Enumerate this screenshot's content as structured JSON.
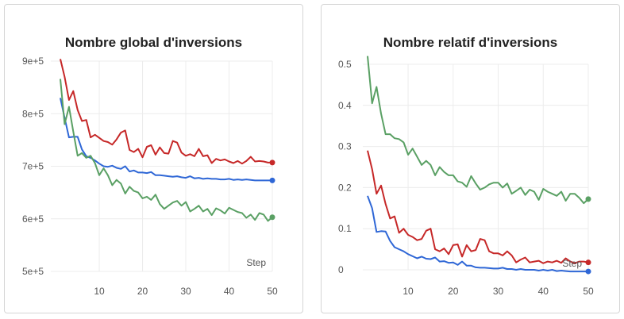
{
  "colors": {
    "red": "#c62828",
    "blue": "#2f67d6",
    "green": "#5aa064",
    "grid": "#ececec"
  },
  "chart_data": [
    {
      "type": "line",
      "title": "Nombre global d'inversions",
      "xlabel": "Step",
      "ylabel": "",
      "grid": true,
      "xlim": [
        1,
        50
      ],
      "ylim": [
        500000,
        900000
      ],
      "x_ticks": [
        10,
        20,
        30,
        40,
        50
      ],
      "x_tick_labels": [
        "10",
        "20",
        "30",
        "40",
        "50"
      ],
      "y_ticks": [
        500000,
        600000,
        700000,
        800000,
        900000
      ],
      "y_tick_labels": [
        "5e+5",
        "6e+5",
        "7e+5",
        "8e+5",
        "9e+5"
      ],
      "series": [
        {
          "color": "red",
          "values": [
            904000,
            870000,
            826000,
            843000,
            807000,
            786000,
            788000,
            755000,
            760000,
            754000,
            748000,
            746000,
            741000,
            751000,
            764000,
            768000,
            731000,
            727000,
            733000,
            717000,
            737000,
            740000,
            722000,
            736000,
            725000,
            724000,
            748000,
            745000,
            726000,
            720000,
            723000,
            719000,
            733000,
            719000,
            721000,
            706000,
            714000,
            711000,
            713000,
            709000,
            706000,
            710000,
            705000,
            710000,
            718000,
            709000,
            710000,
            709000,
            707000,
            707000
          ]
        },
        {
          "color": "blue",
          "values": [
            830000,
            792000,
            755000,
            756000,
            756000,
            732000,
            719000,
            716000,
            711000,
            705000,
            700000,
            699000,
            701000,
            697000,
            695000,
            700000,
            690000,
            692000,
            688000,
            688000,
            687000,
            689000,
            683000,
            683000,
            682000,
            681000,
            680000,
            681000,
            679000,
            678000,
            681000,
            677000,
            678000,
            676000,
            677000,
            676000,
            676000,
            675000,
            675000,
            676000,
            674000,
            675000,
            674000,
            675000,
            674000,
            673000,
            673000,
            673000,
            673000,
            673000
          ]
        },
        {
          "color": "green",
          "values": [
            866000,
            780000,
            813000,
            766000,
            720000,
            725000,
            716000,
            720000,
            706000,
            683000,
            696000,
            683000,
            664000,
            674000,
            667000,
            648000,
            661000,
            653000,
            650000,
            639000,
            642000,
            636000,
            646000,
            628000,
            619000,
            625000,
            631000,
            634000,
            625000,
            632000,
            614000,
            619000,
            625000,
            614000,
            619000,
            607000,
            620000,
            616000,
            610000,
            621000,
            617000,
            613000,
            611000,
            602000,
            608000,
            598000,
            611000,
            608000,
            596000,
            603000
          ]
        }
      ]
    },
    {
      "type": "line",
      "title": "Nombre relatif d'inversions",
      "xlabel": "Step",
      "ylabel": "",
      "grid": true,
      "xlim": [
        1,
        50
      ],
      "ylim": [
        0,
        0.5
      ],
      "x_ticks": [
        10,
        20,
        30,
        40,
        50
      ],
      "x_tick_labels": [
        "10",
        "20",
        "30",
        "40",
        "50"
      ],
      "y_ticks": [
        0,
        0.1,
        0.2,
        0.3,
        0.4,
        0.5
      ],
      "y_tick_labels": [
        "0",
        "0.1",
        "0.2",
        "0.3",
        "0.4",
        "0.5"
      ],
      "series": [
        {
          "color": "red",
          "values": [
            0.29,
            0.245,
            0.185,
            0.205,
            0.16,
            0.125,
            0.13,
            0.09,
            0.1,
            0.085,
            0.08,
            0.072,
            0.075,
            0.095,
            0.1,
            0.05,
            0.045,
            0.052,
            0.038,
            0.06,
            0.062,
            0.032,
            0.06,
            0.045,
            0.048,
            0.075,
            0.072,
            0.045,
            0.04,
            0.04,
            0.035,
            0.045,
            0.035,
            0.018,
            0.025,
            0.03,
            0.018,
            0.02,
            0.022,
            0.016,
            0.02,
            0.018,
            0.022,
            0.017,
            0.028,
            0.02,
            0.016,
            0.02,
            0.02,
            0.018
          ]
        },
        {
          "color": "blue",
          "values": [
            0.18,
            0.15,
            0.092,
            0.094,
            0.093,
            0.07,
            0.055,
            0.05,
            0.045,
            0.038,
            0.033,
            0.028,
            0.032,
            0.027,
            0.026,
            0.03,
            0.02,
            0.021,
            0.017,
            0.018,
            0.012,
            0.02,
            0.01,
            0.01,
            0.006,
            0.005,
            0.005,
            0.004,
            0.003,
            0.003,
            0.005,
            0.002,
            0.002,
            0.0,
            0.002,
            0.0,
            0.0,
            0.0,
            -0.002,
            0.0,
            -0.002,
            0.0,
            -0.003,
            -0.002,
            -0.003,
            -0.004,
            -0.004,
            -0.004,
            -0.004,
            -0.004
          ]
        },
        {
          "color": "green",
          "values": [
            0.52,
            0.405,
            0.445,
            0.38,
            0.33,
            0.33,
            0.32,
            0.318,
            0.31,
            0.28,
            0.295,
            0.275,
            0.255,
            0.265,
            0.255,
            0.23,
            0.25,
            0.238,
            0.23,
            0.23,
            0.215,
            0.212,
            0.202,
            0.228,
            0.21,
            0.195,
            0.2,
            0.208,
            0.212,
            0.212,
            0.2,
            0.21,
            0.185,
            0.192,
            0.2,
            0.182,
            0.195,
            0.19,
            0.17,
            0.197,
            0.19,
            0.185,
            0.18,
            0.19,
            0.168,
            0.185,
            0.185,
            0.175,
            0.162,
            0.172
          ]
        }
      ]
    }
  ]
}
